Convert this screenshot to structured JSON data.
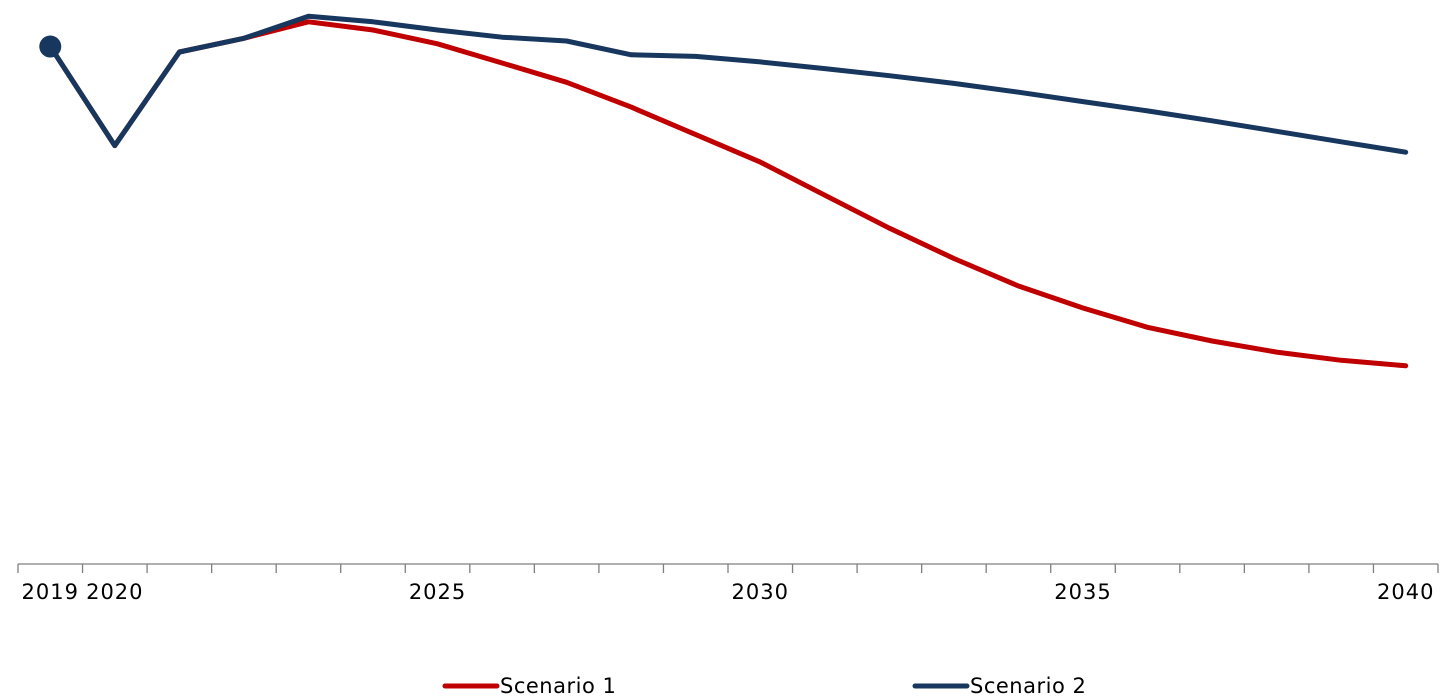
{
  "chart_data": {
    "type": "line",
    "title": "",
    "xlabel": "",
    "ylabel": "",
    "x": [
      2019,
      2020,
      2021,
      2022,
      2023,
      2024,
      2025,
      2026,
      2027,
      2028,
      2029,
      2030,
      2031,
      2032,
      2033,
      2034,
      2035,
      2036,
      2037,
      2038,
      2039,
      2040
    ],
    "x_tick_labels": [
      {
        "x": 2019,
        "label": "2019"
      },
      {
        "x": 2020,
        "label": "2020"
      },
      {
        "x": 2025,
        "label": "2025"
      },
      {
        "x": 2030,
        "label": "2030"
      },
      {
        "x": 2035,
        "label": "2035"
      },
      {
        "x": 2040,
        "label": "2040"
      }
    ],
    "xlim": [
      2018.5,
      2040.5
    ],
    "ylim": [
      0,
      100
    ],
    "y_axis_visible": false,
    "grid": false,
    "legend_position": "bottom",
    "series": [
      {
        "name": "Scenario 1",
        "color": "#c00000",
        "values": [
          94,
          76,
          93,
          95.5,
          98.5,
          97,
          94.5,
          91,
          87.5,
          83,
          78,
          73,
          67,
          61,
          55.5,
          50.5,
          46.5,
          43,
          40.5,
          38.5,
          37,
          36
        ]
      },
      {
        "name": "Scenario 2",
        "color": "#17375e",
        "values": [
          94,
          76,
          93,
          95.5,
          99.5,
          98.5,
          97,
          95.7,
          95,
          92.5,
          92.2,
          91.2,
          90,
          88.7,
          87.3,
          85.7,
          84,
          82.3,
          80.5,
          78.6,
          76.7,
          74.8
        ]
      }
    ],
    "start_marker": {
      "x": 2019,
      "y": 94,
      "color": "#17375e"
    }
  }
}
